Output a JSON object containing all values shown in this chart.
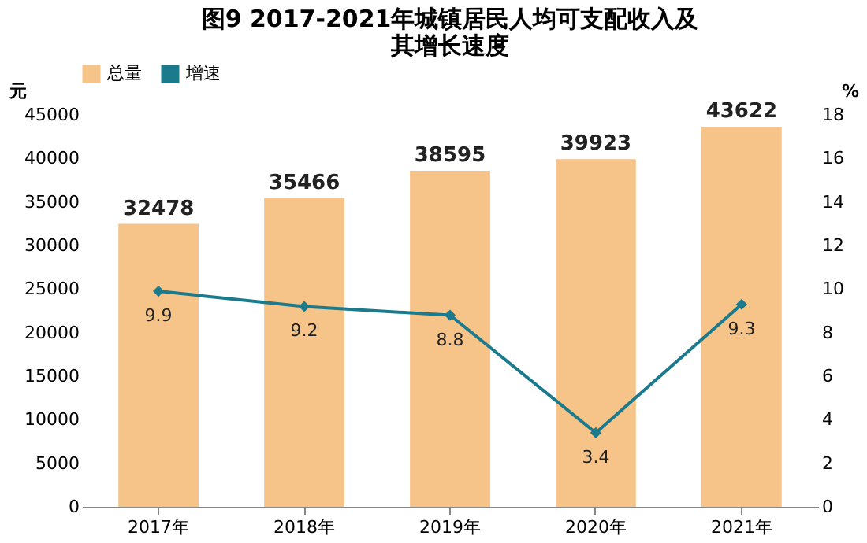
{
  "chart_data": {
    "type": "bar",
    "title": "图9  2017-2021年城镇居民人均可支配收入及其增长速度",
    "ylabel": "元",
    "y2label": "%",
    "categories": [
      "2017年",
      "2018年",
      "2019年",
      "2020年",
      "2021年"
    ],
    "series": [
      {
        "name": "总量",
        "color": "#f6c389",
        "values": [
          32478,
          35466,
          38595,
          39923,
          43622
        ]
      },
      {
        "name": "增速",
        "type": "line",
        "axis": "y2",
        "color": "#1b7a8c",
        "marker": "diamond",
        "values": [
          9.9,
          9.2,
          8.8,
          3.4,
          9.3
        ]
      }
    ],
    "ylim": [
      0,
      45000
    ],
    "yticks": [
      0,
      5000,
      10000,
      15000,
      20000,
      25000,
      30000,
      35000,
      40000,
      45000
    ],
    "y2lim": [
      0,
      18
    ],
    "y2ticks": [
      0,
      2,
      4,
      6,
      8,
      10,
      12,
      14,
      16,
      18
    ],
    "data_labels": true,
    "legend": "top",
    "grid": false
  }
}
